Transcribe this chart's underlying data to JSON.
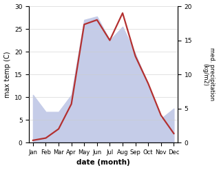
{
  "months": [
    "Jan",
    "Feb",
    "Mar",
    "Apr",
    "May",
    "Jun",
    "Jul",
    "Aug",
    "Sep",
    "Oct",
    "Nov",
    "Dec"
  ],
  "temperature": [
    0.5,
    1.0,
    3.0,
    8.5,
    26.0,
    27.0,
    22.5,
    28.5,
    19.0,
    13.0,
    6.0,
    2.0
  ],
  "precipitation": [
    7.0,
    4.5,
    4.5,
    7.0,
    18.0,
    18.5,
    15.0,
    17.0,
    13.0,
    8.5,
    3.5,
    5.0
  ],
  "temp_color": "#b33030",
  "precip_fill_color": "#c5cce8",
  "temp_ylim": [
    0,
    30
  ],
  "precip_ylim": [
    0,
    20
  ],
  "temp_yticks": [
    0,
    5,
    10,
    15,
    20,
    25,
    30
  ],
  "precip_yticks": [
    0,
    5,
    10,
    15,
    20
  ],
  "xlabel": "date (month)",
  "ylabel_left": "max temp (C)",
  "ylabel_right": "med. precipitation\n(kg/m2)",
  "bg_color": "#ffffff",
  "line_width": 1.6
}
